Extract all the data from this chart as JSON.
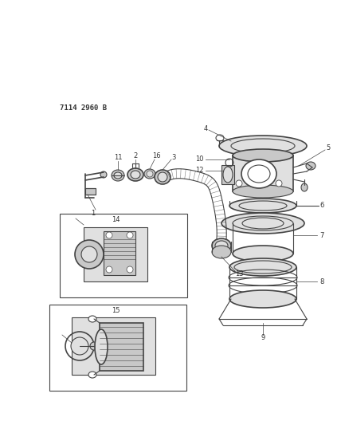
{
  "title": "7114 2960 B",
  "bg_color": "#ffffff",
  "line_color": "#444444",
  "label_color": "#333333",
  "fig_width": 4.28,
  "fig_height": 5.33,
  "dpi": 100
}
